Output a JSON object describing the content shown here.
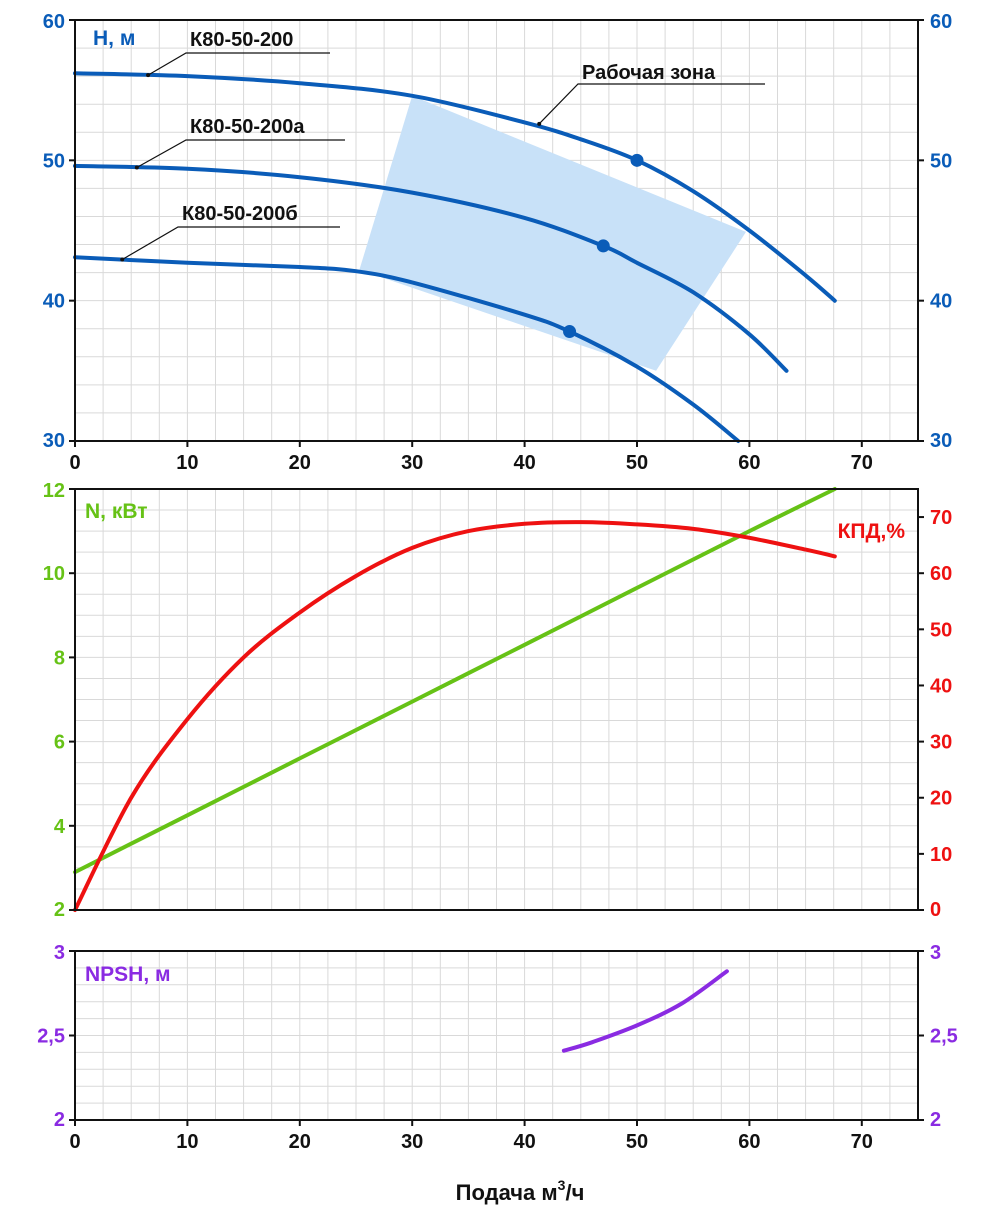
{
  "colors": {
    "head": "#0a5cb8",
    "power": "#66c216",
    "efficiency": "#ee1111",
    "npsh": "#8a2be2",
    "zone": "#c8e1f8",
    "axis": "#111111",
    "grid": "#d9d9d9"
  },
  "x_axis": {
    "title": "Подача м",
    "title_sup": "3",
    "title_tail": "/ч",
    "min": 0,
    "max": 75,
    "ticks": [
      0,
      10,
      20,
      30,
      40,
      50,
      60,
      70
    ],
    "tick_labels": [
      "0",
      "10",
      "20",
      "30",
      "40",
      "50",
      "60",
      "70"
    ]
  },
  "chart_data": [
    {
      "type": "line",
      "title": "",
      "ylabel": "H, м",
      "xlim": [
        0,
        75
      ],
      "ylim": [
        30,
        60
      ],
      "grid": true,
      "y_ticks": [
        30,
        40,
        50,
        60
      ],
      "y_tick_labels": [
        "30",
        "40",
        "50",
        "60"
      ],
      "working_zone": {
        "label": "Рабочая зона",
        "polygon": [
          [
            25.3,
            42.2
          ],
          [
            30.0,
            54.6
          ],
          [
            59.7,
            44.9
          ],
          [
            51.7,
            35.0
          ]
        ]
      },
      "series": [
        {
          "name": "К80-50-200",
          "x": [
            0,
            10,
            20,
            30,
            40,
            45,
            50,
            55,
            60,
            65,
            67.6
          ],
          "y": [
            56.2,
            56.0,
            55.5,
            54.6,
            52.7,
            51.5,
            50.0,
            47.8,
            45.0,
            41.8,
            40.0
          ],
          "operating_point": [
            50,
            50.0
          ]
        },
        {
          "name": "К80-50-200а",
          "x": [
            0,
            10,
            20,
            30,
            40,
            47,
            50,
            55,
            60,
            63.3
          ],
          "y": [
            49.6,
            49.4,
            48.8,
            47.7,
            45.9,
            43.9,
            42.7,
            40.6,
            37.6,
            35.0
          ],
          "operating_point": [
            47,
            43.9
          ]
        },
        {
          "name": "К80-50-200б",
          "x": [
            0,
            10,
            20,
            25,
            30,
            40,
            44,
            50,
            55,
            59
          ],
          "y": [
            43.1,
            42.7,
            42.4,
            42.1,
            41.3,
            39.0,
            37.8,
            35.3,
            32.6,
            30.0
          ],
          "operating_point": [
            44,
            37.8
          ]
        }
      ]
    },
    {
      "type": "line",
      "title": "",
      "xlim": [
        0,
        75
      ],
      "grid": true,
      "y_left": {
        "label": "N, кВт",
        "range": [
          2,
          12
        ],
        "ticks": [
          2,
          4,
          6,
          8,
          10,
          12
        ],
        "tick_labels": [
          "2",
          "4",
          "6",
          "8",
          "10",
          "12"
        ]
      },
      "y_right": {
        "label": "КПД,%",
        "range": [
          0,
          75
        ],
        "ticks": [
          0,
          10,
          20,
          30,
          40,
          50,
          60,
          70
        ],
        "tick_labels": [
          "0",
          "10",
          "20",
          "30",
          "40",
          "50",
          "60",
          "70"
        ]
      },
      "series": [
        {
          "name": "N, кВт",
          "axis": "left",
          "x": [
            0,
            10,
            20,
            30,
            40,
            50,
            60,
            67.6
          ],
          "y": [
            2.9,
            4.25,
            5.6,
            6.95,
            8.3,
            9.65,
            11.0,
            12.0
          ]
        },
        {
          "name": "КПД,%",
          "axis": "right",
          "x": [
            0,
            5,
            10,
            15,
            20,
            25,
            30,
            35,
            40,
            45,
            50,
            55,
            60,
            65,
            67.6
          ],
          "y": [
            0,
            20,
            34,
            45,
            53,
            59.5,
            64.5,
            67.5,
            68.8,
            69.1,
            68.7,
            67.9,
            66.3,
            64.2,
            63.0
          ]
        }
      ]
    },
    {
      "type": "line",
      "title": "",
      "ylabel": "NPSH, м",
      "xlim": [
        0,
        75
      ],
      "ylim": [
        2,
        3
      ],
      "grid": true,
      "y_ticks": [
        2,
        2.5,
        3
      ],
      "y_tick_labels": [
        "2",
        "2,5",
        "3"
      ],
      "series": [
        {
          "name": "NPSH, м",
          "x": [
            43.5,
            46,
            50,
            54,
            58
          ],
          "y": [
            2.41,
            2.46,
            2.56,
            2.69,
            2.88
          ]
        }
      ]
    }
  ]
}
